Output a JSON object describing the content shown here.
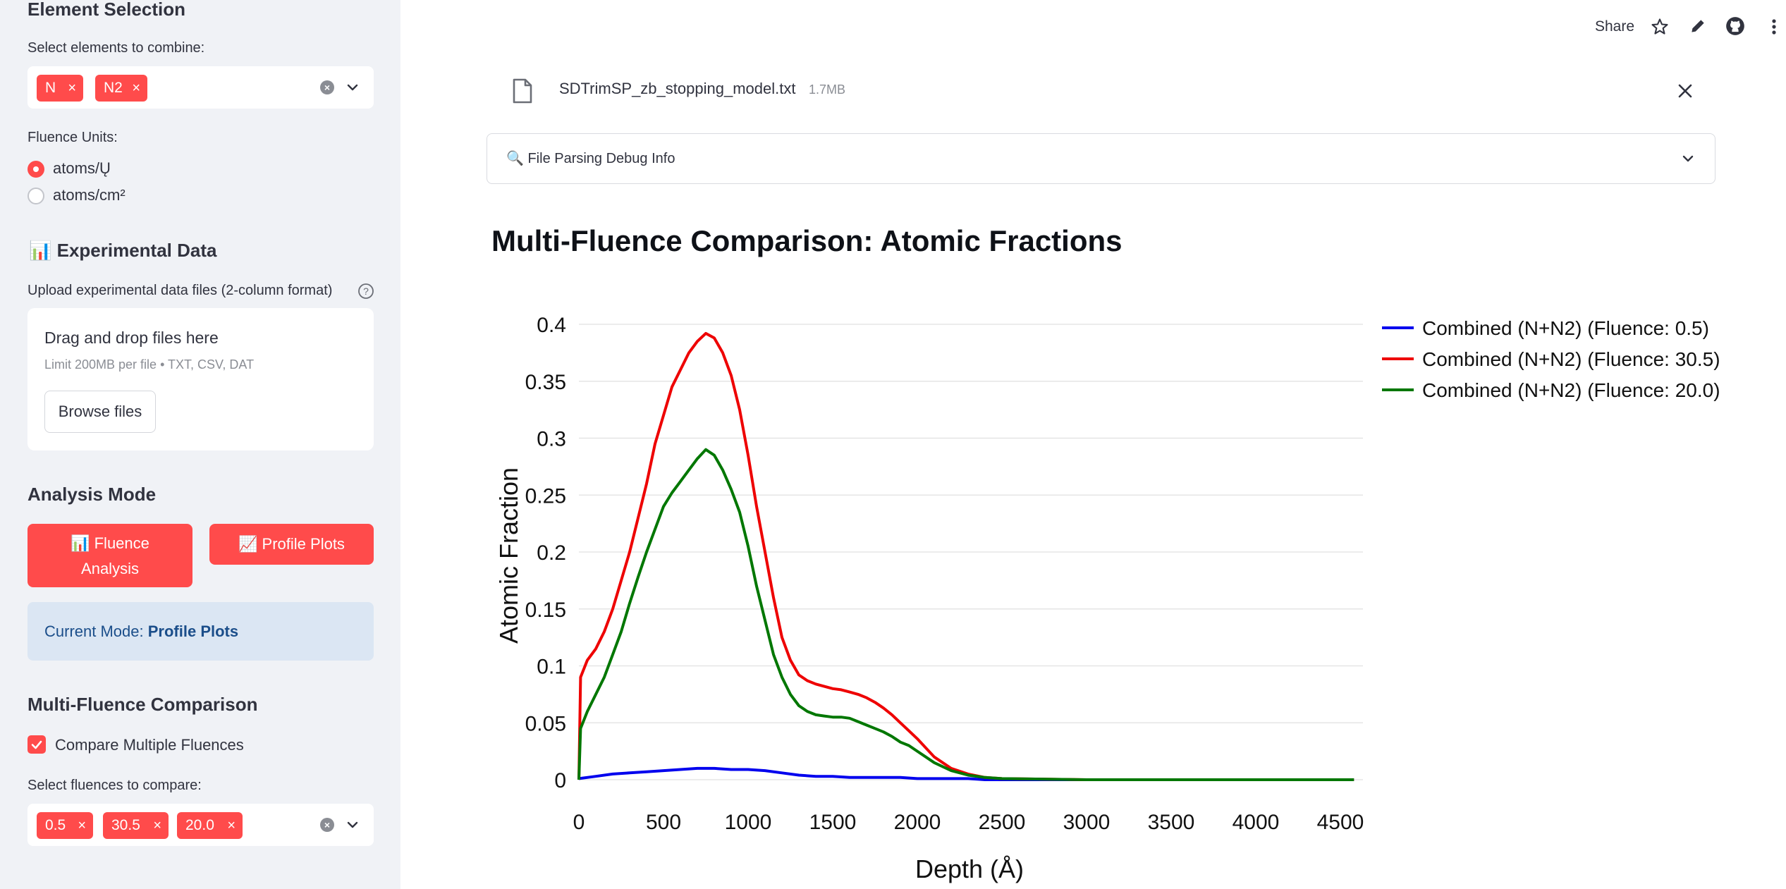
{
  "sidebar": {
    "element_selection": {
      "title": "Element Selection",
      "label": "Select elements to combine:",
      "selected": [
        "N",
        "N2"
      ]
    },
    "fluence_units": {
      "label": "Fluence Units:",
      "options": [
        "atoms/Ų",
        "atoms/cm²"
      ],
      "selected": "atoms/Ų"
    },
    "experimental_data": {
      "title": "📊 Experimental Data",
      "upload_label": "Upload experimental data files (2-column format)",
      "drop_text": "Drag and drop files here",
      "limit_text": "Limit 200MB per file • TXT, CSV, DAT",
      "browse_label": "Browse files"
    },
    "analysis_mode": {
      "title": "Analysis Mode",
      "fluence_button_line1": "📊 Fluence",
      "fluence_button_line2": "Analysis",
      "profile_button": "📈 Profile Plots",
      "current_mode_label": "Current Mode:",
      "current_mode_value": "Profile Plots"
    },
    "multi_fluence": {
      "title": "Multi-Fluence Comparison",
      "checkbox_label": "Compare Multiple Fluences",
      "checked": true,
      "select_label": "Select fluences to compare:",
      "selected": [
        "0.5",
        "30.5",
        "20.0"
      ]
    }
  },
  "toolbar": {
    "share_label": "Share"
  },
  "file": {
    "name": "SDTrimSP_zb_stopping_model.txt",
    "size": "1.7MB"
  },
  "expander": {
    "label": "🔍 File Parsing Debug Info"
  },
  "main": {
    "title": "Multi-Fluence Comparison: Atomic Fractions"
  },
  "colors": {
    "accent": "#ff4b4b",
    "series_blue": "#0000ee",
    "series_red": "#ee0000",
    "series_green": "#007700"
  },
  "chart_data": {
    "type": "line",
    "xlabel": "Depth (Å)",
    "ylabel": "Atomic Fraction",
    "xlim": [
      0,
      4600
    ],
    "ylim": [
      0,
      0.4
    ],
    "x_ticks": [
      0,
      500,
      1000,
      1500,
      2000,
      2500,
      3000,
      3500,
      4000,
      4500
    ],
    "y_ticks": [
      0,
      0.05,
      0.1,
      0.15,
      0.2,
      0.25,
      0.3,
      0.35,
      0.4
    ],
    "y_tick_labels": [
      "0",
      "0.05",
      "0.1",
      "0.15",
      "0.2",
      "0.25",
      "0.3",
      "0.35",
      "0.4"
    ],
    "grid": "horizontal",
    "legend": "top-right",
    "series": [
      {
        "name": "Combined (N+N2) (Fluence: 0.5)",
        "color": "#0000ee",
        "x": [
          0,
          100,
          200,
          300,
          400,
          500,
          600,
          700,
          800,
          900,
          1000,
          1100,
          1200,
          1300,
          1400,
          1500,
          1600,
          1700,
          1800,
          1900,
          2000,
          2100,
          2200,
          2300,
          2400,
          2500,
          3000,
          3500,
          4000,
          4580
        ],
        "y": [
          0.001,
          0.003,
          0.005,
          0.006,
          0.007,
          0.008,
          0.009,
          0.01,
          0.01,
          0.009,
          0.009,
          0.008,
          0.006,
          0.004,
          0.003,
          0.003,
          0.002,
          0.002,
          0.002,
          0.002,
          0.001,
          0.001,
          0.001,
          0.001,
          0,
          0,
          0,
          0,
          0,
          0
        ]
      },
      {
        "name": "Combined (N+N2) (Fluence: 30.5)",
        "color": "#ee0000",
        "x": [
          0,
          10,
          50,
          100,
          150,
          200,
          250,
          300,
          350,
          400,
          450,
          500,
          550,
          600,
          650,
          700,
          750,
          800,
          850,
          900,
          950,
          1000,
          1050,
          1100,
          1150,
          1200,
          1250,
          1300,
          1350,
          1400,
          1450,
          1500,
          1550,
          1600,
          1650,
          1700,
          1750,
          1800,
          1850,
          1900,
          1950,
          2000,
          2050,
          2100,
          2200,
          2300,
          2400,
          2500,
          3000,
          3500,
          4000,
          4580
        ],
        "y": [
          0,
          0.09,
          0.105,
          0.115,
          0.13,
          0.15,
          0.175,
          0.2,
          0.23,
          0.26,
          0.295,
          0.32,
          0.345,
          0.36,
          0.375,
          0.385,
          0.392,
          0.388,
          0.375,
          0.355,
          0.325,
          0.285,
          0.24,
          0.2,
          0.16,
          0.125,
          0.105,
          0.092,
          0.087,
          0.084,
          0.082,
          0.08,
          0.079,
          0.077,
          0.075,
          0.072,
          0.068,
          0.063,
          0.057,
          0.05,
          0.043,
          0.036,
          0.028,
          0.02,
          0.01,
          0.005,
          0.002,
          0.001,
          0,
          0,
          0,
          0
        ]
      },
      {
        "name": "Combined (N+N2) (Fluence: 20.0)",
        "color": "#007700",
        "x": [
          0,
          10,
          50,
          100,
          150,
          200,
          250,
          300,
          350,
          400,
          450,
          500,
          550,
          600,
          650,
          700,
          750,
          800,
          850,
          900,
          950,
          1000,
          1050,
          1100,
          1150,
          1200,
          1250,
          1300,
          1350,
          1400,
          1450,
          1500,
          1550,
          1600,
          1650,
          1700,
          1750,
          1800,
          1850,
          1900,
          1950,
          2000,
          2050,
          2100,
          2200,
          2300,
          2400,
          2500,
          3000,
          3500,
          4000,
          4580
        ],
        "y": [
          0,
          0.045,
          0.06,
          0.075,
          0.09,
          0.11,
          0.13,
          0.155,
          0.178,
          0.2,
          0.22,
          0.24,
          0.252,
          0.262,
          0.272,
          0.282,
          0.29,
          0.285,
          0.272,
          0.255,
          0.235,
          0.205,
          0.17,
          0.14,
          0.11,
          0.09,
          0.075,
          0.065,
          0.06,
          0.057,
          0.056,
          0.055,
          0.055,
          0.054,
          0.051,
          0.048,
          0.045,
          0.042,
          0.038,
          0.033,
          0.03,
          0.025,
          0.02,
          0.015,
          0.008,
          0.004,
          0.002,
          0.001,
          0,
          0,
          0,
          0
        ]
      }
    ]
  }
}
